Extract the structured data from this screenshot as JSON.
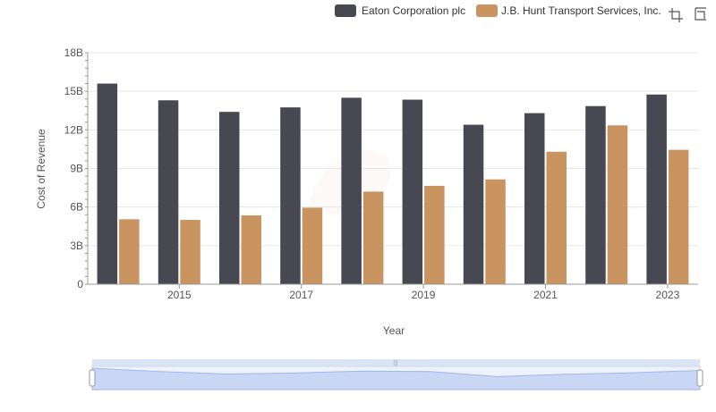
{
  "chart_data": {
    "type": "bar",
    "title": "",
    "xlabel": "Year",
    "ylabel": "Cost of Revenue",
    "categories": [
      "2014",
      "2015",
      "2016",
      "2017",
      "2018",
      "2019",
      "2020",
      "2021",
      "2022",
      "2023"
    ],
    "x_tick_labels": [
      "2015",
      "2017",
      "2019",
      "2021",
      "2023"
    ],
    "y_tick_labels": [
      "0",
      "3B",
      "6B",
      "9B",
      "12B",
      "15B",
      "18B"
    ],
    "ylim": [
      0,
      18000000000
    ],
    "grid": true,
    "legend_position": "top-right",
    "series": [
      {
        "name": "Eaton Corporation plc",
        "color": "#484852",
        "values": [
          15600000000,
          14300000000,
          13400000000,
          13750000000,
          14500000000,
          14350000000,
          12400000000,
          13300000000,
          13850000000,
          14750000000
        ]
      },
      {
        "name": "J.B. Hunt Transport Services, Inc.",
        "color": "#c99460",
        "values": [
          5050000000,
          5000000000,
          5350000000,
          5950000000,
          7200000000,
          7650000000,
          8150000000,
          10300000000,
          12350000000,
          10450000000
        ]
      }
    ]
  },
  "toolbar": {
    "icons": [
      "crop-select-icon",
      "zoom-reset-icon"
    ]
  }
}
